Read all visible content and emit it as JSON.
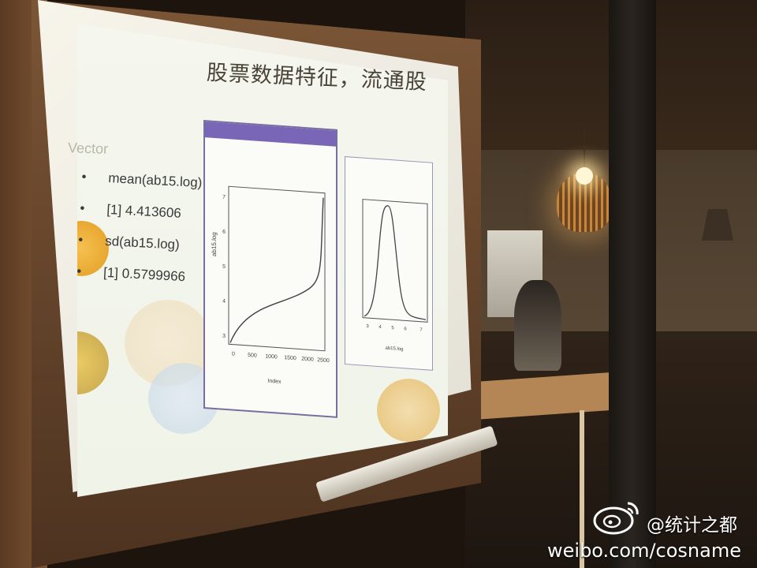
{
  "slide": {
    "title": "股票数据特征，流通股",
    "vector_label": "Vector",
    "bullets": [
      {
        "symbol": "•",
        "text": "mean(ab15.log)"
      },
      {
        "symbol": "•",
        "text": "[1] 4.413606"
      },
      {
        "symbol": "•",
        "text": "sd(ab15.log)"
      },
      {
        "symbol": "•",
        "text": "[1] 0.5799966"
      }
    ]
  },
  "plots": [
    {
      "type": "line",
      "ylabel": "ab15.log",
      "xlabel": "Index",
      "x_ticks": [
        "0",
        "500",
        "1000",
        "1500",
        "2000",
        "2500"
      ],
      "y_ticks": [
        "3",
        "4",
        "5",
        "6",
        "7"
      ]
    },
    {
      "type": "line",
      "ylabel": "",
      "xlabel": "ab15.log",
      "x_ticks": [
        "3",
        "4",
        "5",
        "6",
        "7"
      ],
      "y_ticks": []
    }
  ],
  "watermark": {
    "user": "@统计之都",
    "url": "weibo.com/cosname"
  },
  "colors": {
    "slide_bg": "#f3f5ec",
    "plot_window_bar": "#7a66b6",
    "title_text": "#4a4438"
  }
}
